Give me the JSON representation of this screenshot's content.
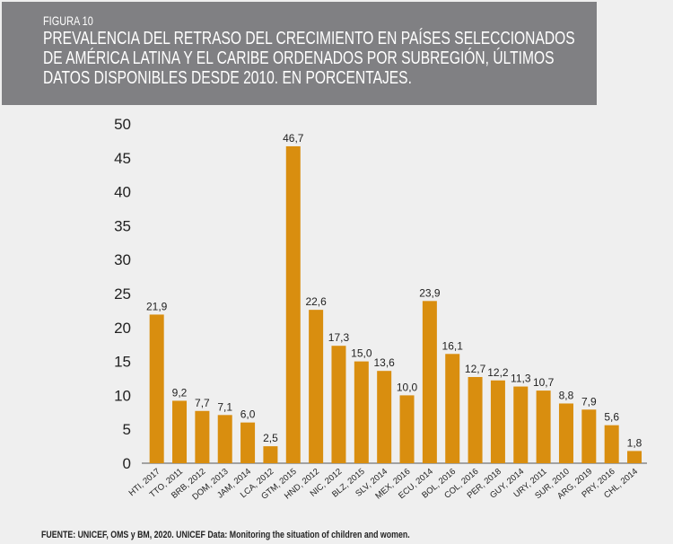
{
  "header": {
    "figure_label": "FIGURA 10",
    "title": "PREVALENCIA DEL RETRASO DEL CRECIMIENTO EN PAÍSES SELECCIONADOS DE AMÉRICA LATINA Y EL CARIBE ORDENADOS POR SUBREGIÓN, ÚLTIMOS DATOS DISPONIBLES DESDE 2010. EN PORCENTAJES."
  },
  "chart_data": {
    "type": "bar",
    "categories": [
      "HTI, 2017",
      "TTO, 2011",
      "BRB, 2012",
      "DOM, 2013",
      "JAM, 2014",
      "LCA, 2012",
      "GTM, 2015",
      "HND, 2012",
      "NIC, 2012",
      "BLZ, 2015",
      "SLV, 2014",
      "MEX, 2016",
      "ECU, 2014",
      "BOL, 2016",
      "COL, 2016",
      "PER, 2018",
      "GUY, 2014",
      "URY, 2011",
      "SUR, 2010",
      "ARG, 2019",
      "PRY, 2016",
      "CHL, 2014"
    ],
    "values": [
      21.9,
      9.2,
      7.7,
      7.1,
      6.0,
      2.5,
      46.7,
      22.6,
      17.3,
      15.0,
      13.6,
      10.0,
      23.9,
      16.1,
      12.7,
      12.2,
      11.3,
      10.7,
      8.8,
      7.9,
      5.6,
      1.8
    ],
    "data_labels": [
      "21,9",
      "9,2",
      "7,7",
      "7,1",
      "6,0",
      "2,5",
      "46,7",
      "22,6",
      "17,3",
      "15,0",
      "13,6",
      "10,0",
      "23,9",
      "16,1",
      "12,7",
      "12,2",
      "11,3",
      "10,7",
      "8,8",
      "7,9",
      "5,6",
      "1,8"
    ],
    "yticks": [
      "0",
      "5",
      "10",
      "15",
      "20",
      "25",
      "30",
      "35",
      "40",
      "45",
      "50"
    ],
    "ylim": [
      0,
      50
    ],
    "grid": false,
    "bar_color": "#d98e0f",
    "title": "",
    "xlabel": "",
    "ylabel": ""
  },
  "footer": {
    "source": "FUENTE: UNICEF, OMS y BM, 2020. UNICEF Data: Monitoring the situation of children and women."
  }
}
